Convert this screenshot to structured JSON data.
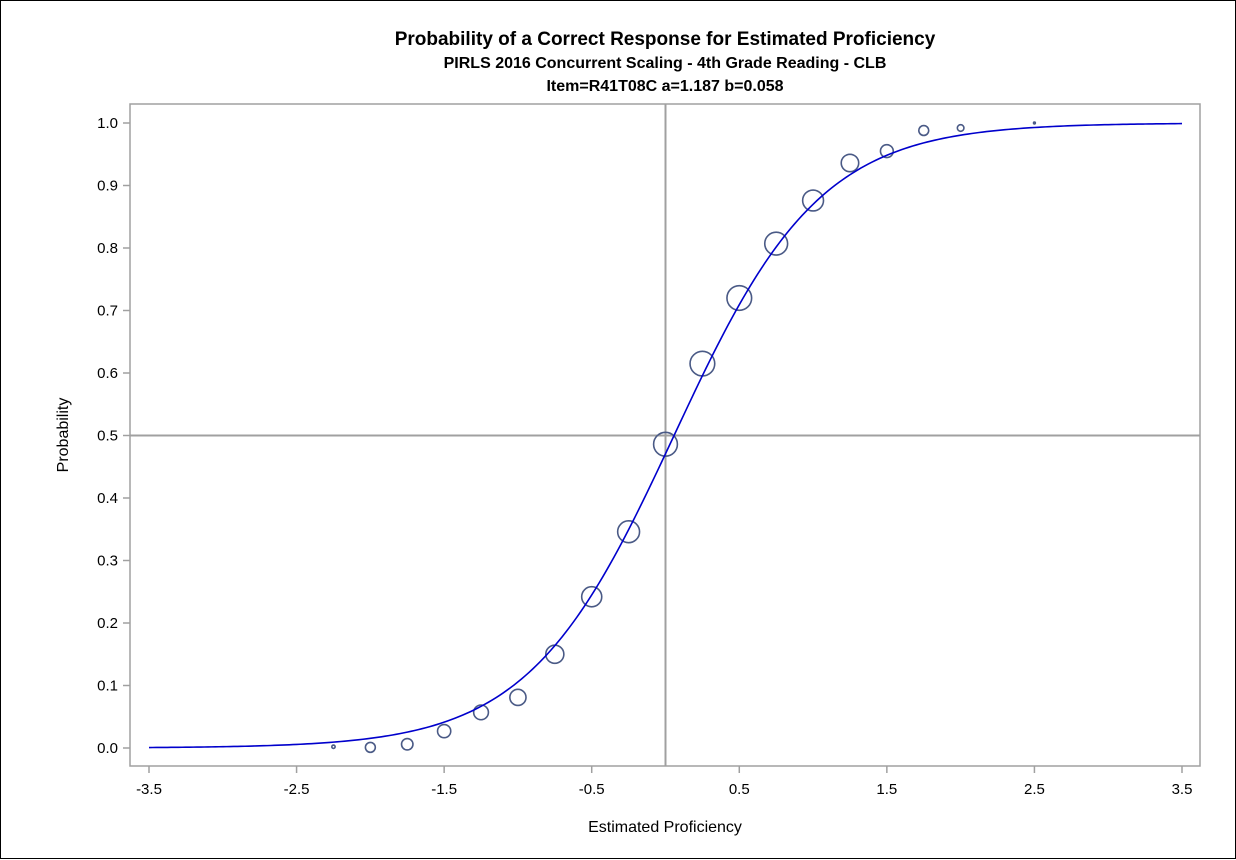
{
  "chart_data": {
    "type": "scatter",
    "title": "Probability of a Correct Response for Estimated Proficiency",
    "subtitle": "PIRLS 2016 Concurrent Scaling - 4th Grade Reading - CLB",
    "subtitle2": "Item=R41T08C a=1.187 b=0.058",
    "xlabel": "Estimated Proficiency",
    "ylabel": "Probability",
    "xlim": [
      -3.5,
      3.5
    ],
    "ylim": [
      0.0,
      1.0
    ],
    "x_ticks": [
      -3.5,
      -2.5,
      -1.5,
      -0.5,
      0.5,
      1.5,
      2.5,
      3.5
    ],
    "x_tick_labels": [
      "-3.5",
      "-2.5",
      "-1.5",
      "-0.5",
      "0.5",
      "1.5",
      "2.5",
      "3.5"
    ],
    "y_ticks": [
      0.0,
      0.1,
      0.2,
      0.3,
      0.4,
      0.5,
      0.6,
      0.7,
      0.8,
      0.9,
      1.0
    ],
    "y_tick_labels": [
      "0.0",
      "0.1",
      "0.2",
      "0.3",
      "0.4",
      "0.5",
      "0.6",
      "0.7",
      "0.8",
      "0.9",
      "1.0"
    ],
    "reference_lines": {
      "x": 0.0,
      "y": 0.5
    },
    "curve": {
      "model": "2PL logistic",
      "a": 1.187,
      "b": 0.058,
      "scale": 1.7,
      "color": "#0000cc"
    },
    "points": [
      {
        "x": -2.25,
        "y": 0.002,
        "weight": 1
      },
      {
        "x": -2.0,
        "y": 0.001,
        "weight": 9
      },
      {
        "x": -1.75,
        "y": 0.006,
        "weight": 12
      },
      {
        "x": -1.5,
        "y": 0.027,
        "weight": 16
      },
      {
        "x": -1.25,
        "y": 0.057,
        "weight": 20
      },
      {
        "x": -1.0,
        "y": 0.081,
        "weight": 24
      },
      {
        "x": -0.75,
        "y": 0.15,
        "weight": 30
      },
      {
        "x": -0.5,
        "y": 0.242,
        "weight": 37
      },
      {
        "x": -0.25,
        "y": 0.346,
        "weight": 44
      },
      {
        "x": 0.0,
        "y": 0.486,
        "weight": 52
      },
      {
        "x": 0.25,
        "y": 0.615,
        "weight": 56
      },
      {
        "x": 0.5,
        "y": 0.72,
        "weight": 56
      },
      {
        "x": 0.75,
        "y": 0.807,
        "weight": 48
      },
      {
        "x": 1.0,
        "y": 0.876,
        "weight": 40
      },
      {
        "x": 1.25,
        "y": 0.936,
        "weight": 28
      },
      {
        "x": 1.5,
        "y": 0.955,
        "weight": 15
      },
      {
        "x": 1.75,
        "y": 0.988,
        "weight": 9
      },
      {
        "x": 2.0,
        "y": 0.992,
        "weight": 4
      },
      {
        "x": 2.5,
        "y": 1.0,
        "weight": 0.3
      }
    ],
    "marker_color": "#4a5a86",
    "refline_color": "#a0a0a0",
    "frame_color": "#a0a0a0"
  }
}
